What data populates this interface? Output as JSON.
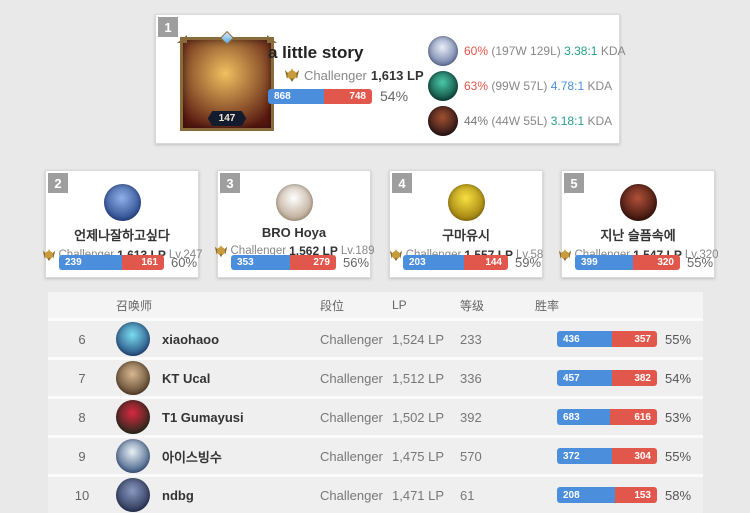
{
  "colors": {
    "win_blue": "#4a8edc",
    "loss_red": "#e2574b",
    "kda_teal": "#27a08d",
    "kda_blue": "#4a90d9",
    "pct_red": "#e2574b",
    "text_gray": "#777777"
  },
  "top_card": {
    "rank": "1",
    "name": "a little story",
    "tier": "Challenger",
    "lp": "1,613 LP",
    "level": "147",
    "wins": 868,
    "losses": 748,
    "winrate": "54%",
    "avatar": {
      "c1": "#f0c060",
      "c2": "#581810"
    },
    "champions": [
      {
        "pct": "60%",
        "pct_color": "#e2574b",
        "record": "(197W 129L)",
        "kda": "3.38:1",
        "kda_color": "#27a08d",
        "kda_label": "KDA",
        "icon": {
          "c1": "#e8eef8",
          "c2": "#5a6a9a"
        }
      },
      {
        "pct": "63%",
        "pct_color": "#e2574b",
        "record": "(99W 57L)",
        "kda": "4.78:1",
        "kda_color": "#4a90d9",
        "kda_label": "KDA",
        "icon": {
          "c1": "#4ac8a8",
          "c2": "#07352e"
        }
      },
      {
        "pct": "44%",
        "pct_color": "#777777",
        "record": "(44W 55L)",
        "kda": "3.18:1",
        "kda_color": "#27a08d",
        "kda_label": "KDA",
        "icon": {
          "c1": "#a05030",
          "c2": "#1c0d14"
        }
      }
    ]
  },
  "cards": [
    {
      "rank": "2",
      "name": "언제나잘하고싶다",
      "tier": "Challenger",
      "lp": "1,613 LP",
      "level": "Lv.247",
      "wins": 239,
      "losses": 161,
      "winrate": "60%",
      "avatar": {
        "c1": "#8fb0e8",
        "c2": "#1c3a80"
      }
    },
    {
      "rank": "3",
      "name": "BRO Hoya",
      "tier": "Challenger",
      "lp": "1,562 LP",
      "level": "Lv.189",
      "wins": 353,
      "losses": 279,
      "winrate": "56%",
      "avatar": {
        "c1": "#ffffff",
        "c2": "#b09a80"
      }
    },
    {
      "rank": "4",
      "name": "구마유시",
      "tier": "Challenger",
      "lp": "1,557 LP",
      "level": "Lv.58",
      "wins": 203,
      "losses": 144,
      "winrate": "59%",
      "avatar": {
        "c1": "#f8e040",
        "c2": "#907008"
      }
    },
    {
      "rank": "5",
      "name": "지난 슬픔속에",
      "tier": "Challenger",
      "lp": "1,547 LP",
      "level": "Lv.320",
      "wins": 399,
      "losses": 320,
      "winrate": "55%",
      "avatar": {
        "c1": "#b05038",
        "c2": "#2a0c08"
      }
    }
  ],
  "table": {
    "headers": {
      "summoner": "召唤师",
      "tier": "段位",
      "lp": "LP",
      "level": "等级",
      "winrate": "胜率"
    },
    "rows": [
      {
        "rank": "6",
        "name": "xiaohaoo",
        "tier": "Challenger",
        "lp": "1,524 LP",
        "level": "233",
        "wins": 436,
        "losses": 357,
        "winrate": "55%",
        "avatar": {
          "c1": "#7adcf0",
          "c2": "#1a3a70"
        }
      },
      {
        "rank": "7",
        "name": "KT Ucal",
        "tier": "Challenger",
        "lp": "1,512 LP",
        "level": "336",
        "wins": 457,
        "losses": 382,
        "winrate": "54%",
        "avatar": {
          "c1": "#d8b890",
          "c2": "#4a3420"
        }
      },
      {
        "rank": "8",
        "name": "T1 Gumayusi",
        "tier": "Challenger",
        "lp": "1,502 LP",
        "level": "392",
        "wins": 683,
        "losses": 616,
        "winrate": "53%",
        "avatar": {
          "c1": "#d82840",
          "c2": "#122a18"
        }
      },
      {
        "rank": "9",
        "name": "아이스빙수",
        "tier": "Challenger",
        "lp": "1,475 LP",
        "level": "570",
        "wins": 372,
        "losses": 304,
        "winrate": "55%",
        "avatar": {
          "c1": "#e8f0f5",
          "c2": "#2c4a78"
        }
      },
      {
        "rank": "10",
        "name": "ndbg",
        "tier": "Challenger",
        "lp": "1,471 LP",
        "level": "61",
        "wins": 208,
        "losses": 153,
        "winrate": "58%",
        "avatar": {
          "c1": "#8898c0",
          "c2": "#1f2848"
        }
      }
    ]
  }
}
